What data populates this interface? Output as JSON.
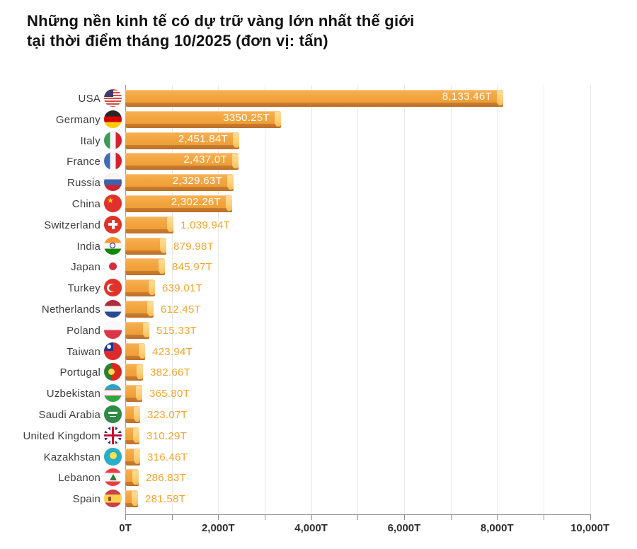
{
  "title": {
    "line1": "Những nền kinh tế có dự trữ vàng lớn nhất thế giới",
    "line2": "tại thời điểm tháng 10/2025 (đơn vị: tấn)"
  },
  "chart_data": {
    "type": "bar",
    "orientation": "horizontal",
    "unit": "tấn (T)",
    "xlim": [
      0,
      10000
    ],
    "grid_interval": 1000,
    "minor_tick_interval": 1000,
    "x_ticks": [
      {
        "value": 0,
        "label": "0T"
      },
      {
        "value": 2000,
        "label": "2,000T"
      },
      {
        "value": 4000,
        "label": "4,000T"
      },
      {
        "value": 6000,
        "label": "6,000T"
      },
      {
        "value": 8000,
        "label": "8,000T"
      },
      {
        "value": 10000,
        "label": "10,000T"
      }
    ],
    "countries": [
      {
        "name": "USA",
        "flag": "flag-usa",
        "value": 8133.46,
        "label": "8,133.46T",
        "label_position": "inside"
      },
      {
        "name": "Germany",
        "flag": "flag-germany",
        "value": 3350.25,
        "label": "3350.25T",
        "label_position": "inside"
      },
      {
        "name": "Italy",
        "flag": "flag-italy",
        "value": 2451.84,
        "label": "2,451.84T",
        "label_position": "inside"
      },
      {
        "name": "France",
        "flag": "flag-france",
        "value": 2437.0,
        "label": "2,437.0T",
        "label_position": "inside"
      },
      {
        "name": "Russia",
        "flag": "flag-russia",
        "value": 2329.63,
        "label": "2,329.63T",
        "label_position": "inside"
      },
      {
        "name": "China",
        "flag": "flag-china",
        "value": 2302.26,
        "label": "2,302.26T",
        "label_position": "inside"
      },
      {
        "name": "Switzerland",
        "flag": "flag-switzerland",
        "value": 1039.94,
        "label": "1,039.94T",
        "label_position": "outside"
      },
      {
        "name": "India",
        "flag": "flag-india",
        "value": 879.98,
        "label": "879.98T",
        "label_position": "outside"
      },
      {
        "name": "Japan",
        "flag": "flag-japan",
        "value": 845.97,
        "label": "845.97T",
        "label_position": "outside"
      },
      {
        "name": "Turkey",
        "flag": "flag-turkey",
        "value": 639.01,
        "label": "639.01T",
        "label_position": "outside"
      },
      {
        "name": "Netherlands",
        "flag": "flag-netherlands",
        "value": 612.45,
        "label": "612.45T",
        "label_position": "outside"
      },
      {
        "name": "Poland",
        "flag": "flag-poland",
        "value": 515.33,
        "label": "515.33T",
        "label_position": "outside"
      },
      {
        "name": "Taiwan",
        "flag": "flag-taiwan",
        "value": 423.94,
        "label": "423.94T",
        "label_position": "outside"
      },
      {
        "name": "Portugal",
        "flag": "flag-portugal",
        "value": 382.66,
        "label": "382.66T",
        "label_position": "outside"
      },
      {
        "name": "Uzbekistan",
        "flag": "flag-uzbekistan",
        "value": 365.8,
        "label": "365.80T",
        "label_position": "outside"
      },
      {
        "name": "Saudi Arabia",
        "flag": "flag-saudi-arabia",
        "value": 323.07,
        "label": "323.07T",
        "label_position": "outside"
      },
      {
        "name": "United Kingdom",
        "flag": "flag-uk",
        "value": 310.29,
        "label": "310.29T",
        "label_position": "outside"
      },
      {
        "name": "Kazakhstan",
        "flag": "flag-kazakhstan",
        "value": 316.46,
        "label": "316.46T",
        "label_position": "outside"
      },
      {
        "name": "Lebanon",
        "flag": "flag-lebanon",
        "value": 286.83,
        "label": "286.83T",
        "label_position": "outside"
      },
      {
        "name": "Spain",
        "flag": "flag-spain",
        "value": 281.58,
        "label": "281.58T",
        "label_position": "outside"
      }
    ]
  },
  "colors": {
    "background": "#FFFFFF",
    "title": "#121212",
    "bar_body": "#F2A53F",
    "bar_body_highlight": "#F8B155",
    "bar_bottom": "#C0742C",
    "bar_end_cap": "#FFD07A",
    "value_inside": "#FFFFFF",
    "value_outside": "#F6A42B",
    "gridline": "#E9E9E6",
    "axis": "#8F8F8F",
    "tick_label": "#2F2F2F",
    "country_label": "#3E3E3E"
  }
}
